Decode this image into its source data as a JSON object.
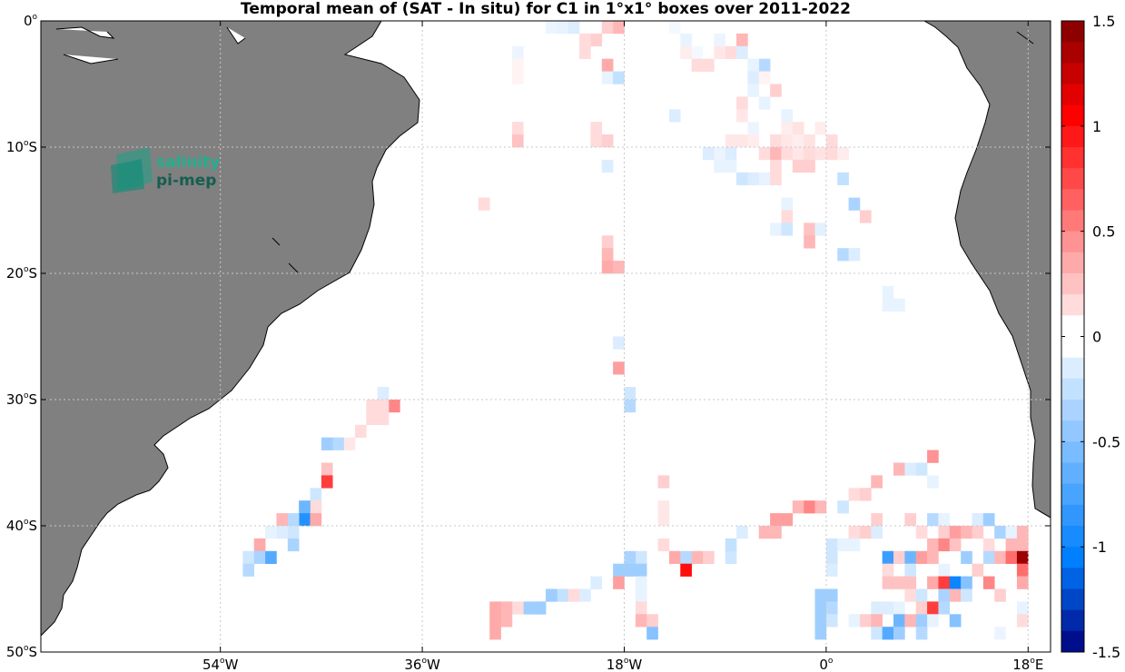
{
  "title": "Temporal mean of (SAT - In situ) for C1 in 1°x1° boxes over 2011-2022",
  "logo": {
    "line1": "salinity",
    "line2": "pi-mep"
  },
  "chart_data": {
    "type": "heatmap",
    "title": "Temporal mean of (SAT - In situ) for C1 in 1°x1° boxes over 2011-2022",
    "xlim": [
      -70,
      20
    ],
    "ylim": [
      -50,
      0
    ],
    "x_ticks": [
      -54,
      -36,
      -18,
      0,
      18
    ],
    "x_tick_labels": [
      {
        "num": "54",
        "hem": "W"
      },
      {
        "num": "36",
        "hem": "W"
      },
      {
        "num": "18",
        "hem": "W"
      },
      {
        "num": "0",
        "hem": ""
      },
      {
        "num": "18",
        "hem": "E"
      }
    ],
    "y_ticks": [
      0,
      -10,
      -20,
      -30,
      -40,
      -50
    ],
    "y_tick_labels": [
      {
        "num": "0",
        "hem": ""
      },
      {
        "num": "10",
        "hem": "S"
      },
      {
        "num": "20",
        "hem": "S"
      },
      {
        "num": "30",
        "hem": "S"
      },
      {
        "num": "40",
        "hem": "S"
      },
      {
        "num": "50",
        "hem": "S"
      }
    ],
    "grid": true,
    "colorbar": {
      "min": -1.5,
      "max": 1.5,
      "ticks": [
        1.5,
        1,
        0.5,
        0,
        -0.5,
        -1,
        -1.5
      ],
      "tick_labels": [
        "1.5",
        "1",
        "0.5",
        "0",
        "-0.5",
        "-1",
        "-1.5"
      ],
      "n_bins": 30
    },
    "land_color": "#808080",
    "cells": [
      [
        -23.5,
        -0.5,
        -0.1
      ],
      [
        -22.5,
        -0.5,
        -0.15
      ],
      [
        -24.5,
        -0.5,
        -0.08
      ],
      [
        -19.5,
        -0.5,
        0.2
      ],
      [
        -18.5,
        -0.5,
        0.3
      ],
      [
        -13.5,
        -0.5,
        -0.05
      ],
      [
        -20.5,
        -1.5,
        0.2
      ],
      [
        -21.5,
        -1.5,
        0.15
      ],
      [
        -12.5,
        -1.5,
        -0.1
      ],
      [
        -27.5,
        -2.5,
        -0.08
      ],
      [
        -21.5,
        -2.5,
        0.15
      ],
      [
        -12.5,
        -2.5,
        0.08
      ],
      [
        -11.5,
        -2.5,
        -0.05
      ],
      [
        -9.5,
        -1.5,
        -0.08
      ],
      [
        -7.5,
        -1.5,
        0.3
      ],
      [
        -8.5,
        -2.5,
        0.15
      ],
      [
        -9.5,
        -2.5,
        0.1
      ],
      [
        -7.5,
        -2.5,
        -0.15
      ],
      [
        -27.5,
        -3.5,
        0.05
      ],
      [
        -19.5,
        -3.5,
        0.35
      ],
      [
        -11.5,
        -3.5,
        0.15
      ],
      [
        -10.5,
        -3.5,
        0.15
      ],
      [
        -5.5,
        -3.5,
        -0.3
      ],
      [
        -6.5,
        -3.5,
        -0.1
      ],
      [
        -27.5,
        -4.5,
        0.05
      ],
      [
        -19.5,
        -4.5,
        -0.1
      ],
      [
        -18.5,
        -4.5,
        -0.25
      ],
      [
        -6.5,
        -4.5,
        -0.15
      ],
      [
        -5.5,
        -4.5,
        0.05
      ],
      [
        -6.5,
        -5.5,
        -0.1
      ],
      [
        -4.5,
        -5.5,
        0.2
      ],
      [
        -7.5,
        -6.5,
        0.15
      ],
      [
        -5.5,
        -6.5,
        -0.1
      ],
      [
        -13.5,
        -7.5,
        -0.15
      ],
      [
        -7.5,
        -7.5,
        0.1
      ],
      [
        -3.5,
        -7.5,
        -0.1
      ],
      [
        -27.5,
        -8.5,
        0.15
      ],
      [
        -20.5,
        -8.5,
        0.15
      ],
      [
        -6.5,
        -8.5,
        -0.08
      ],
      [
        -3.5,
        -8.5,
        0.08
      ],
      [
        -2.5,
        -8.5,
        0.12
      ],
      [
        -0.5,
        -8.5,
        0.08
      ],
      [
        -27.5,
        -9.5,
        0.25
      ],
      [
        -20.5,
        -9.5,
        0.15
      ],
      [
        -19.5,
        -9.5,
        0.2
      ],
      [
        -8.5,
        -9.5,
        0.1
      ],
      [
        -7.5,
        -9.5,
        0.1
      ],
      [
        -6.5,
        -9.5,
        0.08
      ],
      [
        -4.5,
        -9.5,
        0.15
      ],
      [
        -3.5,
        -9.5,
        0.1
      ],
      [
        -2.5,
        -9.5,
        0.08
      ],
      [
        -1.5,
        -9.5,
        0.12
      ],
      [
        0.5,
        -9.5,
        0.15
      ],
      [
        -10.5,
        -10.5,
        -0.15
      ],
      [
        -9.5,
        -10.5,
        -0.08
      ],
      [
        -8.5,
        -10.5,
        -0.15
      ],
      [
        -5.5,
        -10.5,
        0.15
      ],
      [
        -4.5,
        -10.5,
        0.3
      ],
      [
        -3.5,
        -10.5,
        0.15
      ],
      [
        -2.5,
        -10.5,
        0.1
      ],
      [
        -1.5,
        -10.5,
        0.15
      ],
      [
        -0.5,
        -10.5,
        0.12
      ],
      [
        0.5,
        -10.5,
        0.15
      ],
      [
        1.5,
        -10.5,
        0.08
      ],
      [
        -19.5,
        -11.5,
        -0.15
      ],
      [
        -9.5,
        -11.5,
        -0.1
      ],
      [
        -8.5,
        -11.5,
        -0.1
      ],
      [
        -4.5,
        -11.5,
        0.15
      ],
      [
        -2.5,
        -11.5,
        0.2
      ],
      [
        -1.5,
        -11.5,
        0.2
      ],
      [
        -7.5,
        -12.5,
        -0.2
      ],
      [
        -6.5,
        -12.5,
        -0.15
      ],
      [
        -5.5,
        -12.5,
        -0.1
      ],
      [
        -4.5,
        -12.5,
        0.15
      ],
      [
        1.5,
        -12.5,
        -0.25
      ],
      [
        -3.5,
        -14.5,
        -0.1
      ],
      [
        2.5,
        -14.5,
        -0.35
      ],
      [
        -30.5,
        -14.5,
        0.15
      ],
      [
        -3.5,
        -15.5,
        0.15
      ],
      [
        3.5,
        -15.5,
        0.2
      ],
      [
        -4.5,
        -16.5,
        -0.1
      ],
      [
        -3.5,
        -16.5,
        -0.2
      ],
      [
        -1.5,
        -16.5,
        0.25
      ],
      [
        -0.5,
        -16.5,
        -0.12
      ],
      [
        -19.5,
        -17.5,
        0.2
      ],
      [
        -1.5,
        -17.5,
        0.3
      ],
      [
        -19.5,
        -18.5,
        0.3
      ],
      [
        1.5,
        -18.5,
        -0.3
      ],
      [
        2.5,
        -18.5,
        -0.15
      ],
      [
        -19.5,
        -19.5,
        0.35
      ],
      [
        -18.5,
        -19.5,
        0.3
      ],
      [
        5.5,
        -21.5,
        -0.1
      ],
      [
        5.5,
        -22.5,
        -0.1
      ],
      [
        6.5,
        -22.5,
        -0.1
      ],
      [
        -18.5,
        -25.5,
        -0.15
      ],
      [
        -18.5,
        -27.5,
        0.4
      ],
      [
        -17.5,
        -29.5,
        -0.2
      ],
      [
        -17.5,
        -30.5,
        -0.3
      ],
      [
        -39.5,
        -29.5,
        -0.15
      ],
      [
        -38.5,
        -30.5,
        0.5
      ],
      [
        -40.5,
        -30.5,
        0.15
      ],
      [
        -39.5,
        -30.5,
        0.15
      ],
      [
        -40.5,
        -31.5,
        0.15
      ],
      [
        -39.5,
        -31.5,
        0.15
      ],
      [
        -41.5,
        -32.5,
        0.15
      ],
      [
        -42.5,
        -33.5,
        0.1
      ],
      [
        -43.5,
        -33.5,
        -0.3
      ],
      [
        -44.5,
        -33.5,
        -0.4
      ],
      [
        -44.5,
        -35.5,
        0.25
      ],
      [
        -44.5,
        -36.5,
        0.8
      ],
      [
        -45.5,
        -37.5,
        -0.2
      ],
      [
        -45.5,
        -38.5,
        0.15
      ],
      [
        -46.5,
        -38.5,
        -0.6
      ],
      [
        -46.5,
        -39.5,
        -0.9
      ],
      [
        -45.5,
        -39.5,
        0.35
      ],
      [
        -47.5,
        -39.5,
        -0.3
      ],
      [
        -48.5,
        -39.5,
        0.3
      ],
      [
        -47.5,
        -40.5,
        -0.2
      ],
      [
        -48.5,
        -40.5,
        -0.15
      ],
      [
        -49.5,
        -40.5,
        -0.1
      ],
      [
        -47.5,
        -41.5,
        -0.35
      ],
      [
        -50.5,
        -41.5,
        0.35
      ],
      [
        -51.5,
        -42.5,
        -0.2
      ],
      [
        -50.5,
        -42.5,
        -0.35
      ],
      [
        -49.5,
        -42.5,
        -0.7
      ],
      [
        -51.5,
        -43.5,
        -0.3
      ],
      [
        -14.5,
        -36.5,
        0.2
      ],
      [
        -14.5,
        -38.5,
        0.1
      ],
      [
        -14.5,
        -39.5,
        0.1
      ],
      [
        -14.5,
        -41.5,
        0.15
      ],
      [
        -13.5,
        -42.5,
        0.35
      ],
      [
        -12.5,
        -42.5,
        -0.3
      ],
      [
        -11.5,
        -42.5,
        0.3
      ],
      [
        -10.5,
        -42.5,
        0.2
      ],
      [
        -8.5,
        -42.5,
        -0.2
      ],
      [
        -8.5,
        -41.5,
        -0.25
      ],
      [
        -16.5,
        -42.5,
        -0.2
      ],
      [
        -17.5,
        -42.5,
        -0.35
      ],
      [
        -17.5,
        -43.5,
        -0.4
      ],
      [
        -16.5,
        -43.5,
        -0.4
      ],
      [
        -18.5,
        -43.5,
        -0.4
      ],
      [
        -12.5,
        -43.5,
        1.0
      ],
      [
        -18.5,
        -44.5,
        0.4
      ],
      [
        -16.5,
        -44.5,
        -0.1
      ],
      [
        -16.5,
        -45.5,
        -0.1
      ],
      [
        -16.5,
        -46.5,
        0.15
      ],
      [
        -16.5,
        -47.5,
        0.3
      ],
      [
        -15.5,
        -47.5,
        0.2
      ],
      [
        -15.5,
        -48.5,
        -0.5
      ],
      [
        -20.5,
        -44.5,
        -0.15
      ],
      [
        -23.5,
        -45.5,
        -0.25
      ],
      [
        -24.5,
        -45.5,
        -0.4
      ],
      [
        -21.5,
        -45.5,
        -0.15
      ],
      [
        -22.5,
        -45.5,
        0.15
      ],
      [
        -25.5,
        -46.5,
        -0.4
      ],
      [
        -26.5,
        -46.5,
        -0.4
      ],
      [
        -27.5,
        -46.5,
        0.15
      ],
      [
        -25.5,
        -46.5,
        -0.4
      ],
      [
        -28.5,
        -46.5,
        0.3
      ],
      [
        -29.5,
        -46.5,
        0.35
      ],
      [
        -28.5,
        -47.5,
        0.3
      ],
      [
        -29.5,
        -47.5,
        0.35
      ],
      [
        -29.5,
        -48.5,
        0.35
      ],
      [
        -2.5,
        -38.5,
        0.3
      ],
      [
        -1.5,
        -38.5,
        0.5
      ],
      [
        -0.5,
        -38.5,
        0.3
      ],
      [
        1.5,
        -38.5,
        -0.2
      ],
      [
        -3.5,
        -39.5,
        0.4
      ],
      [
        -4.5,
        -39.5,
        0.4
      ],
      [
        -5.5,
        -40.5,
        0.3
      ],
      [
        -4.5,
        -40.5,
        0.3
      ],
      [
        -7.5,
        -40.5,
        -0.15
      ],
      [
        2.5,
        -37.5,
        0.15
      ],
      [
        3.5,
        -37.5,
        0.2
      ],
      [
        4.5,
        -36.5,
        0.3
      ],
      [
        6.5,
        -35.5,
        0.3
      ],
      [
        7.5,
        -35.5,
        -0.15
      ],
      [
        8.5,
        -35.5,
        -0.2
      ],
      [
        9.5,
        -34.5,
        0.45
      ],
      [
        9.5,
        -36.5,
        -0.1
      ],
      [
        4.5,
        -39.5,
        0.2
      ],
      [
        7.5,
        -39.5,
        0.2
      ],
      [
        9.5,
        -39.5,
        -0.3
      ],
      [
        10.5,
        -39.5,
        -0.1
      ],
      [
        13.5,
        -39.5,
        -0.15
      ],
      [
        14.5,
        -39.5,
        -0.4
      ],
      [
        2.5,
        -40.5,
        0.15
      ],
      [
        3.5,
        -40.5,
        0.2
      ],
      [
        4.5,
        -40.5,
        -0.15
      ],
      [
        8.5,
        -40.5,
        0.15
      ],
      [
        10.5,
        -40.5,
        0.2
      ],
      [
        11.5,
        -40.5,
        0.4
      ],
      [
        12.5,
        -40.5,
        0.3
      ],
      [
        13.5,
        -40.5,
        0.2
      ],
      [
        15.5,
        -40.5,
        -0.35
      ],
      [
        16.5,
        -40.5,
        -0.1
      ],
      [
        17.5,
        -40.5,
        0.3
      ],
      [
        0.5,
        -41.5,
        -0.2
      ],
      [
        1.5,
        -41.5,
        -0.1
      ],
      [
        2.5,
        -41.5,
        -0.1
      ],
      [
        9.5,
        -41.5,
        0.3
      ],
      [
        10.5,
        -41.5,
        0.5
      ],
      [
        11.5,
        -41.5,
        0.25
      ],
      [
        14.5,
        -41.5,
        0.15
      ],
      [
        16.5,
        -41.5,
        0.3
      ],
      [
        17.5,
        -41.5,
        0.3
      ],
      [
        5.5,
        -42.5,
        -0.8
      ],
      [
        6.5,
        -42.5,
        0.2
      ],
      [
        7.5,
        -42.5,
        -0.6
      ],
      [
        8.5,
        -42.5,
        0.4
      ],
      [
        9.5,
        -42.5,
        0.3
      ],
      [
        12.5,
        -42.5,
        -0.4
      ],
      [
        14.5,
        -42.5,
        -0.3
      ],
      [
        15.5,
        -42.5,
        0.3
      ],
      [
        16.5,
        -42.5,
        0.6
      ],
      [
        17.5,
        -42.5,
        1.4
      ],
      [
        0.5,
        -42.5,
        -0.2
      ],
      [
        0.5,
        -43.5,
        -0.15
      ],
      [
        5.5,
        -43.5,
        0.15
      ],
      [
        7.5,
        -43.5,
        -0.2
      ],
      [
        10.5,
        -43.5,
        -0.1
      ],
      [
        13.5,
        -43.5,
        0.2
      ],
      [
        17.5,
        -43.5,
        0.6
      ],
      [
        5.5,
        -44.5,
        0.25
      ],
      [
        6.5,
        -44.5,
        0.25
      ],
      [
        7.5,
        -44.5,
        0.25
      ],
      [
        9.5,
        -44.5,
        0.35
      ],
      [
        10.5,
        -44.5,
        0.8
      ],
      [
        11.5,
        -44.5,
        -1.0
      ],
      [
        12.5,
        -44.5,
        -0.5
      ],
      [
        14.5,
        -44.5,
        0.5
      ],
      [
        17.5,
        -44.5,
        0.35
      ],
      [
        -0.5,
        -45.5,
        -0.4
      ],
      [
        0.5,
        -45.5,
        -0.4
      ],
      [
        7.5,
        -45.5,
        0.15
      ],
      [
        8.5,
        -45.5,
        -0.2
      ],
      [
        10.5,
        -45.5,
        -0.35
      ],
      [
        11.5,
        -45.5,
        0.3
      ],
      [
        12.5,
        -45.5,
        -0.2
      ],
      [
        15.5,
        -45.5,
        0.2
      ],
      [
        -0.5,
        -46.5,
        -0.4
      ],
      [
        0.5,
        -46.5,
        -0.3
      ],
      [
        4.5,
        -46.5,
        -0.15
      ],
      [
        5.5,
        -46.5,
        -0.15
      ],
      [
        6.5,
        -46.5,
        -0.1
      ],
      [
        8.5,
        -46.5,
        0.2
      ],
      [
        9.5,
        -46.5,
        0.8
      ],
      [
        10.5,
        -46.5,
        -0.3
      ],
      [
        17.5,
        -46.5,
        -0.1
      ],
      [
        -0.5,
        -47.5,
        -0.4
      ],
      [
        0.5,
        -47.5,
        -0.2
      ],
      [
        2.5,
        -47.5,
        -0.1
      ],
      [
        3.5,
        -47.5,
        0.2
      ],
      [
        4.5,
        -47.5,
        0.3
      ],
      [
        6.5,
        -47.5,
        -0.6
      ],
      [
        7.5,
        -47.5,
        0.3
      ],
      [
        8.5,
        -47.5,
        -0.4
      ],
      [
        9.5,
        -47.5,
        -0.1
      ],
      [
        11.5,
        -47.5,
        -0.5
      ],
      [
        17.5,
        -47.5,
        0.15
      ],
      [
        -0.5,
        -48.5,
        -0.4
      ],
      [
        4.5,
        -48.5,
        -0.2
      ],
      [
        5.5,
        -48.5,
        -0.7
      ],
      [
        6.5,
        -48.5,
        -0.4
      ],
      [
        8.5,
        -48.5,
        -0.3
      ],
      [
        15.5,
        -48.5,
        -0.08
      ]
    ]
  }
}
